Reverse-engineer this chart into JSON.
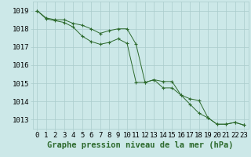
{
  "line1": [
    1019.0,
    1018.6,
    1018.5,
    1018.5,
    1018.3,
    1018.2,
    1018.0,
    1017.75,
    1017.9,
    1018.0,
    1018.0,
    1017.15,
    1015.05,
    1015.2,
    1015.1,
    1015.1,
    1014.35,
    1014.15,
    1014.05,
    1013.1,
    1012.75,
    1012.75,
    1012.85,
    1012.7
  ],
  "line2": [
    1019.0,
    1018.55,
    1018.45,
    1018.35,
    1018.1,
    1017.6,
    1017.3,
    1017.15,
    1017.25,
    1017.45,
    1017.2,
    1015.05,
    1015.05,
    1015.2,
    1014.75,
    1014.75,
    1014.35,
    1013.85,
    1013.35,
    1013.1,
    1012.75,
    1012.75,
    1012.85,
    1012.7
  ],
  "x": [
    0,
    1,
    2,
    3,
    4,
    5,
    6,
    7,
    8,
    9,
    10,
    11,
    12,
    13,
    14,
    15,
    16,
    17,
    18,
    19,
    20,
    21,
    22,
    23
  ],
  "xlim": [
    -0.5,
    23.5
  ],
  "ylim": [
    1012.5,
    1019.5
  ],
  "yticks": [
    1013,
    1014,
    1015,
    1016,
    1017,
    1018,
    1019
  ],
  "xticks": [
    0,
    1,
    2,
    3,
    4,
    5,
    6,
    7,
    8,
    9,
    10,
    11,
    12,
    13,
    14,
    15,
    16,
    17,
    18,
    19,
    20,
    21,
    22,
    23
  ],
  "line_color": "#2d6a2d",
  "bg_color": "#cce8e8",
  "grid_color": "#aacccc",
  "xlabel": "Graphe pression niveau de la mer (hPa)",
  "marker": "+",
  "tick_fontsize": 6.5,
  "xlabel_fontsize": 7.5
}
